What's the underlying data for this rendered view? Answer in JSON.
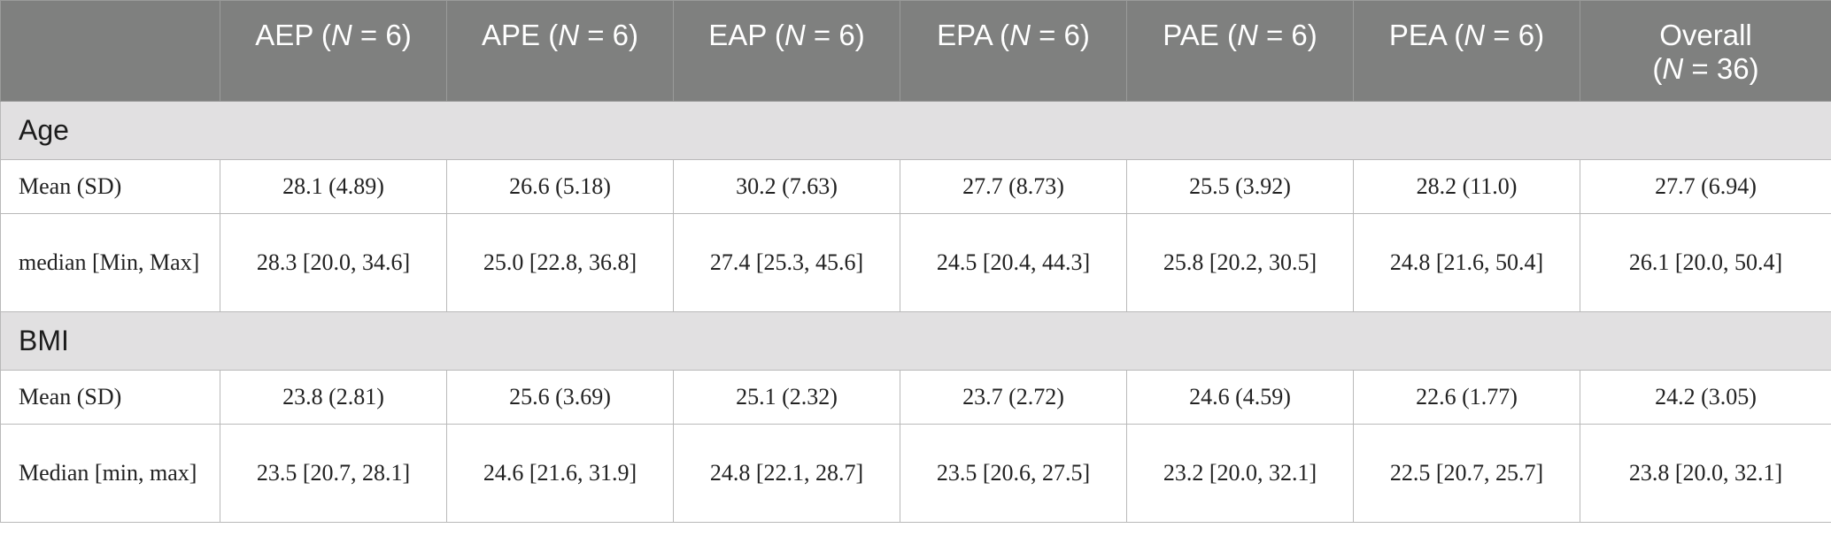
{
  "header": {
    "columns": [
      {
        "name": "AEP",
        "n_label": "N",
        "n_value": " = 6)"
      },
      {
        "name": "APE",
        "n_label": "N",
        "n_value": " = 6)"
      },
      {
        "name": "EAP",
        "n_label": "N",
        "n_value": " = 6)"
      },
      {
        "name": "EPA",
        "n_label": "N",
        "n_value": " = 6)"
      },
      {
        "name": "PAE",
        "n_label": "N",
        "n_value": " = 6)"
      },
      {
        "name": "PEA",
        "n_label": "N",
        "n_value": " = 6)"
      }
    ],
    "overall": {
      "name": "Overall",
      "n_label": "N",
      "n_value": " = 36)"
    }
  },
  "sections": [
    {
      "title": "Age",
      "rows": [
        {
          "label": "Mean (SD)",
          "values": [
            "28.1 (4.89)",
            "26.6 (5.18)",
            "30.2 (7.63)",
            "27.7 (8.73)",
            "25.5 (3.92)",
            "28.2 (11.0)",
            "27.7 (6.94)"
          ]
        },
        {
          "label": "median [Min, Max]",
          "values": [
            "28.3 [20.0, 34.6]",
            "25.0 [22.8, 36.8]",
            "27.4 [25.3, 45.6]",
            "24.5 [20.4, 44.3]",
            "25.8 [20.2, 30.5]",
            "24.8 [21.6, 50.4]",
            "26.1 [20.0, 50.4]"
          ]
        }
      ]
    },
    {
      "title": "BMI",
      "rows": [
        {
          "label": "Mean (SD)",
          "values": [
            "23.8 (2.81)",
            "25.6 (3.69)",
            "25.1 (2.32)",
            "23.7 (2.72)",
            "24.6 (4.59)",
            "22.6 (1.77)",
            "24.2 (3.05)"
          ]
        },
        {
          "label": "Median [min, max]",
          "values": [
            "23.5 [20.7, 28.1]",
            "24.6 [21.6, 31.9]",
            "24.8 [22.1, 28.7]",
            "23.5 [20.6, 27.5]",
            "23.2 [20.0, 32.1]",
            "22.5 [20.7, 25.7]",
            "23.8 [20.0, 32.1]"
          ]
        }
      ]
    }
  ]
}
